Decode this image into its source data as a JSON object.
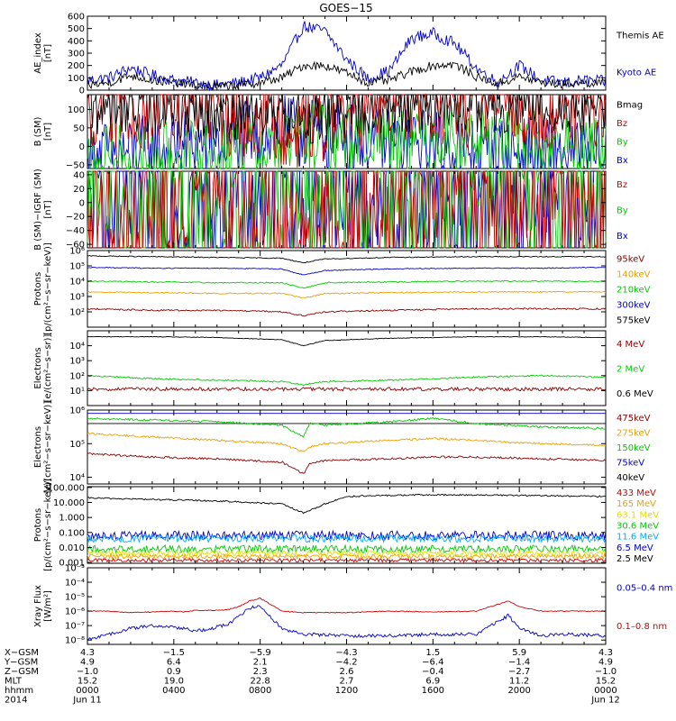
{
  "title": "GOES−15",
  "colors": {
    "black": "#000000",
    "blue": "#0000cc",
    "green": "#00cc00",
    "red": "#cc0000",
    "orange": "#f0a000",
    "darkred": "#8b0000",
    "cyan": "#00aaff",
    "yellow": "#e0e000",
    "purple": "#800080",
    "brown": "#a0522d"
  },
  "chart_data": [
    {
      "type": "line",
      "ylabel": "AE_index\n[nT]",
      "ylim": [
        0,
        600
      ],
      "log": false,
      "yticks": [
        "0",
        "100",
        "200",
        "300",
        "400",
        "500",
        "600"
      ],
      "tick_values": [
        0,
        100,
        200,
        300,
        400,
        500,
        600
      ],
      "x": [
        0,
        1,
        2,
        3,
        4,
        5,
        6,
        7,
        8,
        9,
        10,
        11,
        12,
        13,
        14,
        15,
        16,
        17,
        18,
        19,
        20,
        21,
        22,
        23,
        24
      ],
      "series": [
        {
          "name": "Kyoto AE",
          "color": "#0000cc",
          "noise": 0.08,
          "values": [
            80,
            100,
            180,
            120,
            80,
            60,
            40,
            60,
            100,
            200,
            520,
            480,
            250,
            90,
            160,
            420,
            460,
            380,
            180,
            60,
            200,
            80,
            60,
            80,
            70
          ]
        },
        {
          "name": "Themis AE",
          "color": "#000000",
          "noise": 0.06,
          "values": [
            40,
            60,
            120,
            80,
            60,
            40,
            30,
            40,
            60,
            100,
            200,
            200,
            140,
            60,
            80,
            150,
            200,
            210,
            110,
            50,
            110,
            60,
            50,
            60,
            50
          ]
        }
      ]
    },
    {
      "type": "line",
      "ylabel": "B (SM)\n[nT]",
      "ylim": [
        -60,
        140
      ],
      "log": false,
      "yticks": [
        "−50",
        "0",
        "50",
        "100"
      ],
      "tick_values": [
        -50,
        0,
        50,
        100
      ],
      "x": [
        0,
        3,
        6,
        8,
        9.5,
        10,
        10.5,
        12,
        15,
        18,
        21,
        24
      ],
      "series": [
        {
          "name": "Bx",
          "color": "#0000cc",
          "noise": 0.5,
          "values": [
            -28,
            -10,
            12,
            30,
            40,
            38,
            35,
            25,
            5,
            -10,
            -22,
            -28
          ]
        },
        {
          "name": "By",
          "color": "#00cc00",
          "noise": 0.5,
          "values": [
            -38,
            -36,
            -20,
            -5,
            10,
            18,
            25,
            30,
            33,
            20,
            0,
            -20
          ]
        },
        {
          "name": "Bz",
          "color": "#cc0000",
          "noise": 0.6,
          "values": [
            108,
            102,
            95,
            85,
            65,
            60,
            72,
            100,
            112,
            115,
            112,
            105
          ]
        },
        {
          "name": "Bmag",
          "color": "#000000",
          "noise": 0.4,
          "values": [
            110,
            104,
            98,
            90,
            72,
            68,
            78,
            102,
            114,
            117,
            114,
            108
          ]
        }
      ]
    },
    {
      "type": "line",
      "ylabel": "B (SM)−IGRF (SM)\n[nT]",
      "ylim": [
        -65,
        45
      ],
      "log": false,
      "yticks": [
        "−60",
        "−40",
        "−20",
        "0",
        "20",
        "40"
      ],
      "tick_values": [
        -60,
        -40,
        -20,
        0,
        20,
        40
      ],
      "x": [
        0,
        2,
        4,
        6,
        8,
        9,
        10,
        11,
        13,
        16,
        20,
        24
      ],
      "series": [
        {
          "name": "Bx",
          "color": "#0000cc",
          "noise": 1.2,
          "values": [
            3,
            5,
            8,
            10,
            12,
            15,
            18,
            15,
            10,
            8,
            3,
            0
          ]
        },
        {
          "name": "By",
          "color": "#00cc00",
          "noise": 1.5,
          "values": [
            -5,
            -5,
            -3,
            0,
            5,
            12,
            20,
            14,
            12,
            5,
            0,
            -5
          ]
        },
        {
          "name": "Bz",
          "color": "#cc0000",
          "noise": 1.5,
          "values": [
            -10,
            -12,
            -18,
            -25,
            -35,
            -45,
            -52,
            -40,
            -20,
            -5,
            8,
            0
          ]
        }
      ]
    },
    {
      "type": "line",
      "ylabel": "Protons\n[p/(cm²−s−sr−keV)]",
      "ylim": [
        1,
        6
      ],
      "log": true,
      "yticks": [
        "10²",
        "10³",
        "10⁴",
        "10⁵",
        "10⁶"
      ],
      "tick_values": [
        2,
        3,
        4,
        5,
        6
      ],
      "x": [
        0,
        3,
        6,
        9,
        10,
        11,
        14,
        18,
        21,
        24
      ],
      "series": [
        {
          "name": "575keV",
          "color": "#000000",
          "noise": 0.03,
          "values": [
            5.65,
            5.6,
            5.55,
            5.5,
            5.2,
            5.45,
            5.55,
            5.6,
            5.6,
            5.6
          ]
        },
        {
          "name": "300keV",
          "color": "#0000cc",
          "noise": 0.03,
          "values": [
            4.9,
            4.85,
            4.85,
            4.8,
            4.4,
            4.7,
            4.8,
            4.85,
            4.85,
            4.9
          ]
        },
        {
          "name": "210keV",
          "color": "#00cc00",
          "noise": 0.04,
          "values": [
            4.0,
            3.95,
            3.9,
            3.9,
            3.55,
            3.9,
            3.95,
            4.0,
            4.0,
            4.0
          ]
        },
        {
          "name": "140keV",
          "color": "#f0a000",
          "noise": 0.04,
          "values": [
            3.3,
            3.25,
            3.2,
            3.2,
            2.9,
            3.2,
            3.25,
            3.3,
            3.3,
            3.3
          ]
        },
        {
          "name": "95keV",
          "color": "#8b0000",
          "noise": 0.05,
          "values": [
            2.2,
            2.1,
            2.1,
            2.0,
            1.75,
            2.0,
            2.1,
            2.2,
            2.2,
            2.2
          ]
        }
      ]
    },
    {
      "type": "line",
      "ylabel": "Electrons\n[e/(cm²−s−sr)]",
      "ylim": [
        0,
        5
      ],
      "log": true,
      "yticks": [
        "10¹",
        "10²",
        "10³",
        "10⁴"
      ],
      "tick_values": [
        1,
        2,
        3,
        4
      ],
      "x": [
        0,
        3,
        6,
        9,
        10,
        11,
        14,
        18,
        21,
        24
      ],
      "series": [
        {
          "name": "0.6 MeV",
          "color": "#000000",
          "noise": 0.02,
          "values": [
            4.6,
            4.6,
            4.55,
            4.4,
            4.0,
            4.35,
            4.5,
            4.6,
            4.6,
            4.55
          ]
        },
        {
          "name": "2 MeV",
          "color": "#00cc00",
          "noise": 0.05,
          "values": [
            2.0,
            1.8,
            1.7,
            1.6,
            1.4,
            1.6,
            1.7,
            1.9,
            2.0,
            1.9
          ]
        },
        {
          "name": "4 MeV",
          "color": "#8b0000",
          "noise": 0.12,
          "values": [
            1.1,
            1.1,
            1.1,
            1.1,
            1.1,
            1.1,
            1.1,
            1.1,
            1.1,
            1.1
          ]
        }
      ]
    },
    {
      "type": "line",
      "ylabel": "Electrons\n[e/(cm²−s−sr−keV)]",
      "ylim": [
        3.8,
        6
      ],
      "log": true,
      "yticks": [
        "10⁴",
        "10⁵",
        "10⁶"
      ],
      "tick_values": [
        4,
        5,
        6
      ],
      "x": [
        0,
        3,
        6,
        9,
        10,
        10.3,
        11,
        14,
        16,
        18,
        21,
        24
      ],
      "series": [
        {
          "name": "40keV",
          "color": "#000000",
          "noise": 0.0,
          "values": [
            5.6,
            5.6,
            5.6,
            5.6,
            5.6,
            5.6,
            5.6,
            5.6,
            5.6,
            5.6,
            5.6,
            5.6
          ]
        },
        {
          "name": "75keV",
          "color": "#0000cc",
          "noise": 0.0,
          "values": [
            5.9,
            5.9,
            5.9,
            5.9,
            5.9,
            5.9,
            5.9,
            5.9,
            5.9,
            5.9,
            5.9,
            5.9
          ]
        },
        {
          "name": "150keV",
          "color": "#00cc00",
          "noise": 0.03,
          "values": [
            5.75,
            5.7,
            5.65,
            5.55,
            5.2,
            5.6,
            5.55,
            5.65,
            5.75,
            5.6,
            5.5,
            5.45
          ]
        },
        {
          "name": "275keV",
          "color": "#f0a000",
          "noise": 0.03,
          "values": [
            5.3,
            5.2,
            5.1,
            5.0,
            4.75,
            4.9,
            5.0,
            5.1,
            5.15,
            5.1,
            5.0,
            4.95
          ]
        },
        {
          "name": "475keV",
          "color": "#8b0000",
          "noise": 0.03,
          "values": [
            4.7,
            4.6,
            4.55,
            4.45,
            4.1,
            4.4,
            4.5,
            4.55,
            4.6,
            4.6,
            4.55,
            4.5
          ]
        }
      ]
    },
    {
      "type": "line",
      "ylabel": "Protons\n[p/(cm²−s−sr−keV)]",
      "ylim": [
        -3.05,
        2.05
      ],
      "log": true,
      "yticks": [
        "0.001",
        "0.010",
        "0.100",
        "1.000",
        "10.000",
        "100.000"
      ],
      "tick_values": [
        -3,
        -2,
        -1,
        0,
        1,
        2
      ],
      "x": [
        0,
        3,
        6,
        9,
        10,
        11,
        12,
        15,
        18,
        21,
        24
      ],
      "series": [
        {
          "name": "2.5 MeV",
          "color": "#000000",
          "noise": 0.05,
          "values": [
            1.3,
            1.2,
            1.1,
            0.9,
            0.3,
            0.9,
            1.4,
            1.5,
            1.5,
            1.45,
            1.4
          ]
        },
        {
          "name": "6.5 MeV",
          "color": "#0000cc",
          "noise": 0.3,
          "values": [
            -1.2,
            -1.2,
            -1.2,
            -1.2,
            -1.2,
            -1.2,
            -1.2,
            -1.2,
            -1.2,
            -1.2,
            -1.2
          ]
        },
        {
          "name": "11.6 MeV",
          "color": "#00aaff",
          "noise": 0.25,
          "values": [
            -1.4,
            -1.4,
            -1.4,
            -1.4,
            -1.4,
            -1.4,
            -1.4,
            -1.4,
            -1.4,
            -1.4,
            -1.4
          ]
        },
        {
          "name": "30.6 MeV",
          "color": "#00cc00",
          "noise": 0.25,
          "values": [
            -2.1,
            -2.1,
            -2.1,
            -2.1,
            -2.1,
            -2.1,
            -2.1,
            -2.1,
            -2.1,
            -2.1,
            -2.1
          ]
        },
        {
          "name": "63.1 MeV",
          "color": "#e0e000",
          "noise": 0.2,
          "values": [
            -2.4,
            -2.4,
            -2.4,
            -2.4,
            -2.4,
            -2.4,
            -2.4,
            -2.4,
            -2.4,
            -2.4,
            -2.4
          ]
        },
        {
          "name": "165 MeV",
          "color": "#f0a000",
          "noise": 0.15,
          "values": [
            -2.6,
            -2.6,
            -2.6,
            -2.6,
            -2.6,
            -2.6,
            -2.6,
            -2.6,
            -2.6,
            -2.6,
            -2.6
          ]
        },
        {
          "name": "433 MeV",
          "color": "#cc0000",
          "noise": 0.12,
          "values": [
            -2.85,
            -2.85,
            -2.85,
            -2.85,
            -2.85,
            -2.85,
            -2.85,
            -2.85,
            -2.85,
            -2.85,
            -2.85
          ]
        }
      ]
    },
    {
      "type": "line",
      "ylabel": "Xray Flux\n[W/m²]",
      "ylim": [
        -8.3,
        -3
      ],
      "log": true,
      "yticks": [
        "10⁻⁸",
        "10⁻⁷",
        "10⁻⁶",
        "10⁻⁵",
        "10⁻⁴",
        "10⁻³"
      ],
      "tick_values": [
        -8,
        -7,
        -6,
        -5,
        -4,
        -3
      ],
      "x": [
        0,
        1,
        2,
        3,
        4,
        4.5,
        5,
        6,
        6.5,
        7,
        7.5,
        8,
        9,
        10,
        12,
        14,
        16,
        18,
        19.5,
        20,
        21,
        22,
        24
      ],
      "series": [
        {
          "name": "0.1–0.8 nm",
          "color": "#cc0000",
          "noise": 0.03,
          "values": [
            -6.0,
            -6.0,
            -6.1,
            -6.05,
            -6.0,
            -6.05,
            -5.95,
            -5.95,
            -5.9,
            -5.7,
            -5.3,
            -5.1,
            -6.0,
            -6.1,
            -6.1,
            -6.0,
            -6.05,
            -6.0,
            -5.3,
            -5.7,
            -6.0,
            -6.0,
            -6.0
          ]
        },
        {
          "name": "0.05–0.4 nm",
          "color": "#0000cc",
          "noise": 0.12,
          "values": [
            -8.0,
            -7.6,
            -7.2,
            -7.0,
            -7.1,
            -7.2,
            -7.4,
            -7.1,
            -6.9,
            -6.4,
            -5.8,
            -5.6,
            -7.2,
            -7.6,
            -7.7,
            -7.7,
            -7.6,
            -7.6,
            -6.3,
            -7.2,
            -7.7,
            -7.6,
            -7.7
          ]
        }
      ]
    }
  ],
  "ephemeris": {
    "rows": [
      {
        "label": "X−GSM",
        "values": [
          "4.3",
          "−1.5",
          "−5.9",
          "−4.3",
          "1.5",
          "5.9",
          "4.3"
        ]
      },
      {
        "label": "Y−GSM",
        "values": [
          "4.9",
          "6.4",
          "2.1",
          "−4.2",
          "−6.4",
          "−1.4",
          "4.9"
        ]
      },
      {
        "label": "Z−GSM",
        "values": [
          "−1.0",
          "0.9",
          "2.3",
          "2.6",
          "−0.4",
          "−2.7",
          "−1.0"
        ]
      },
      {
        "label": "MLT",
        "values": [
          "15.2",
          "19.0",
          "22.8",
          "2.7",
          "6.9",
          "11.2",
          "15.2"
        ]
      },
      {
        "label": "hhmm",
        "values": [
          "0000",
          "0400",
          "0800",
          "1200",
          "1600",
          "2000",
          "0000"
        ]
      },
      {
        "label": "2014",
        "values": [
          "Jun 11",
          "",
          "",
          "",
          "",
          "",
          "Jun 12"
        ]
      }
    ]
  }
}
